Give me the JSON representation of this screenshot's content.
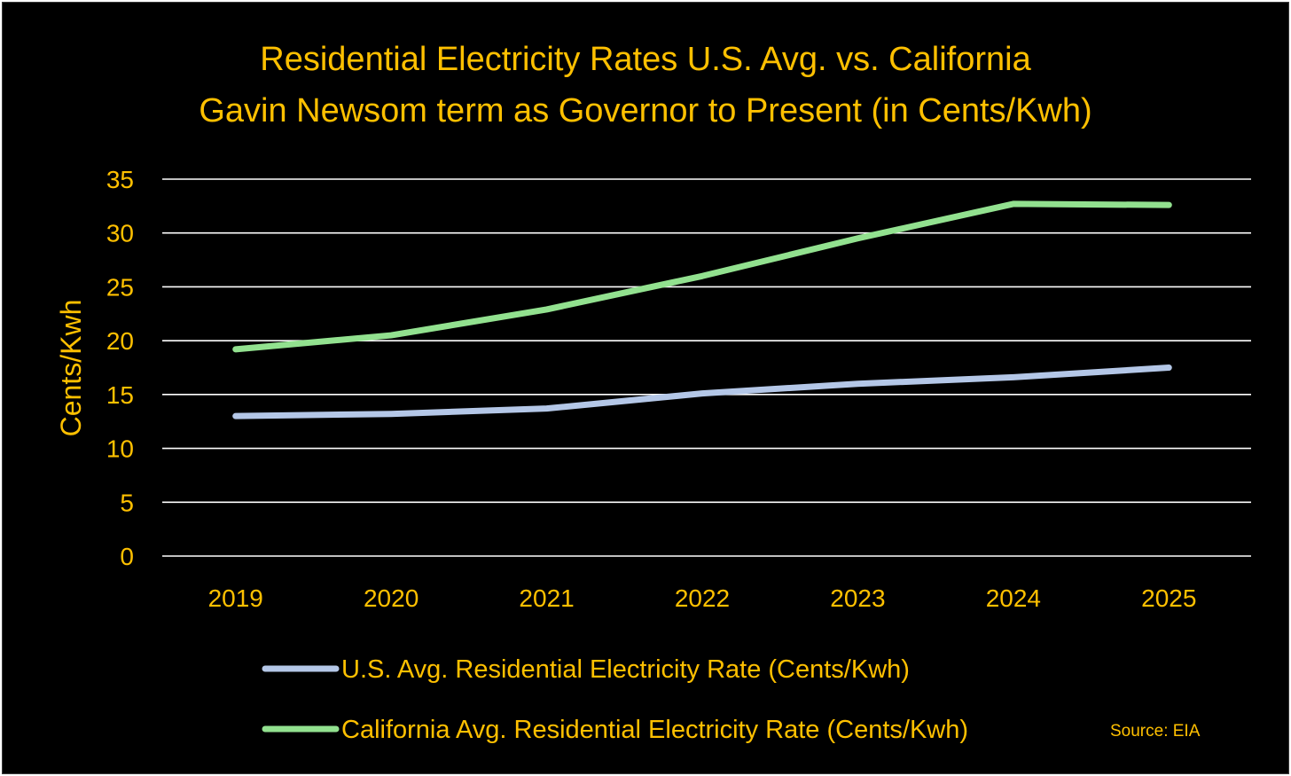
{
  "colors": {
    "background": "#000000",
    "text": "#FFC000",
    "grid": "#FFFFFF",
    "source_text": "#FFC000"
  },
  "chart_data": {
    "type": "line",
    "title_lines": [
      "Residential Electricity Rates U.S. Avg. vs. California",
      "Gavin Newsom term as Governor to Present (in Cents/Kwh)"
    ],
    "xlabel": "",
    "ylabel": "Cents/Kwh",
    "categories": [
      "2019",
      "2020",
      "2021",
      "2022",
      "2023",
      "2024",
      "2025"
    ],
    "ylim": [
      0,
      35
    ],
    "yticks": [
      "0",
      "5",
      "10",
      "15",
      "20",
      "25",
      "30",
      "35"
    ],
    "grid": true,
    "legend_position": "bottom",
    "series": [
      {
        "name": "U.S. Avg. Residential Electricity Rate (Cents/Kwh)",
        "color": "#B4C7E7",
        "values": [
          13.0,
          13.2,
          13.7,
          15.1,
          16.0,
          16.6,
          17.5
        ]
      },
      {
        "name": "California Avg. Residential Electricity Rate (Cents/Kwh)",
        "color": "#92E18F",
        "values": [
          19.2,
          20.5,
          22.9,
          26.0,
          29.5,
          32.7,
          32.6
        ]
      }
    ],
    "source": "Source: EIA"
  }
}
